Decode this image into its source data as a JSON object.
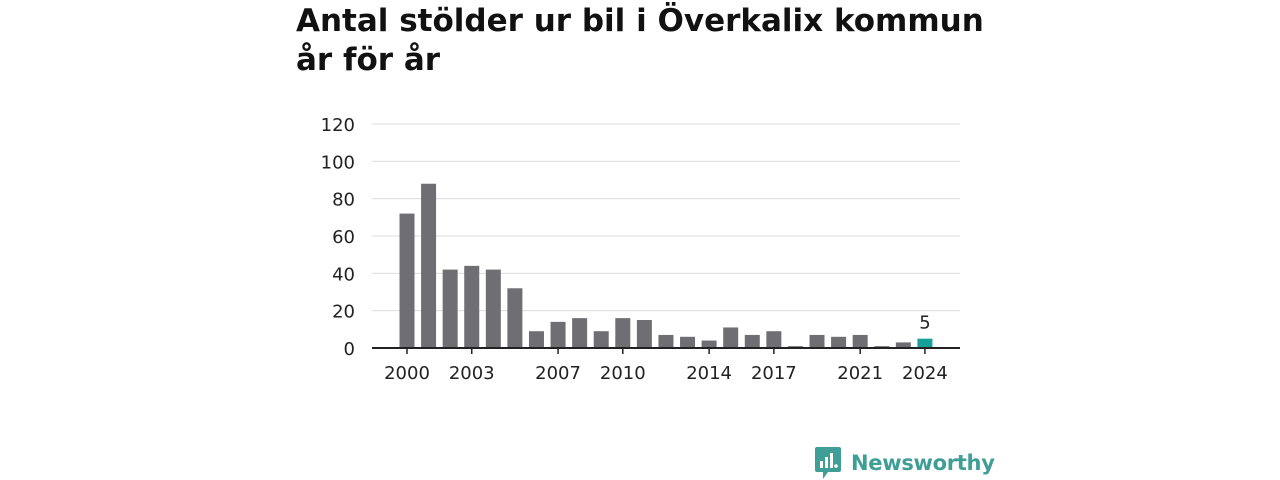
{
  "title": {
    "line1": "Antal stölder ur bil i Överkalix kommun",
    "line2": "år för år"
  },
  "brand": {
    "name": "Newsworthy",
    "icon": "newsworthy-logo-icon"
  },
  "colors": {
    "bar": "#6f6f73",
    "highlight": "#17a097",
    "grid": "#dcdcdc",
    "axis": "#222222",
    "text": "#222222",
    "brand": "#3f9f97"
  },
  "chart_data": {
    "type": "bar",
    "categories": [
      "2000",
      "2001",
      "2002",
      "2003",
      "2004",
      "2005",
      "2006",
      "2007",
      "2008",
      "2009",
      "2010",
      "2011",
      "2012",
      "2013",
      "2014",
      "2015",
      "2016",
      "2017",
      "2018",
      "2019",
      "2020",
      "2021",
      "2022",
      "2023",
      "2024"
    ],
    "values": [
      72,
      88,
      42,
      44,
      42,
      32,
      9,
      14,
      16,
      9,
      16,
      15,
      7,
      6,
      4,
      11,
      7,
      9,
      1,
      7,
      6,
      7,
      1,
      3,
      5
    ],
    "highlight_index": 24,
    "highlight_label": "5",
    "xtick_labels": [
      "2000",
      "2003",
      "2007",
      "2010",
      "2014",
      "2017",
      "2021",
      "2024"
    ],
    "yticks": [
      0,
      20,
      40,
      60,
      80,
      100,
      120
    ],
    "ylim": [
      0,
      120
    ],
    "title": "Antal stölder ur bil i Överkalix kommun år för år",
    "xlabel": "",
    "ylabel": "",
    "grid": true,
    "legend": "none"
  }
}
